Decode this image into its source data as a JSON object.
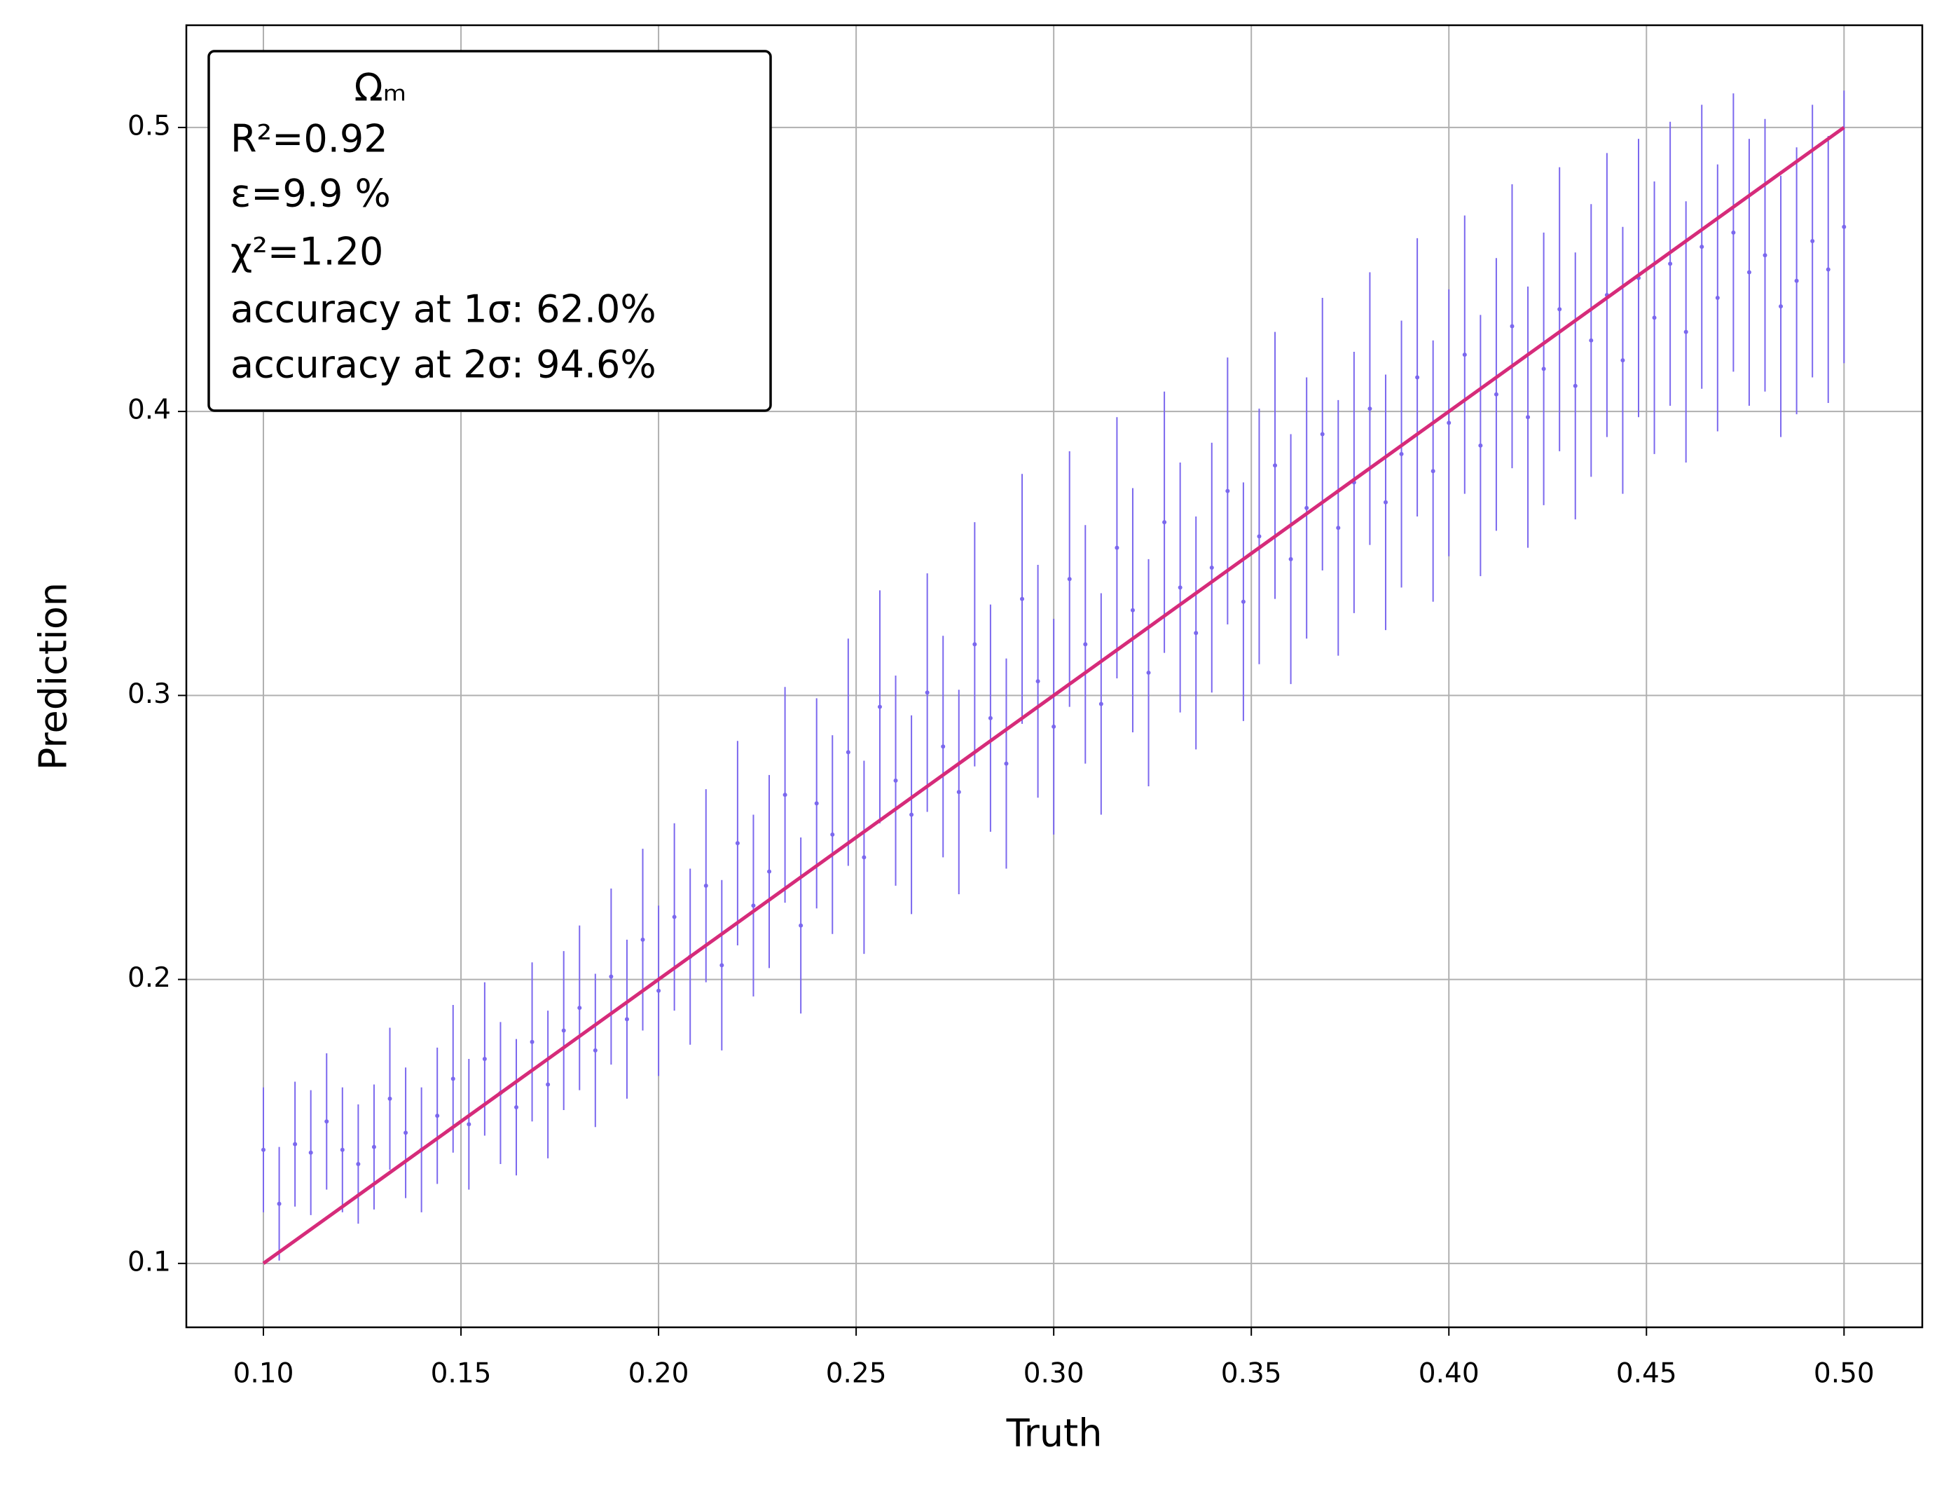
{
  "chart_data": {
    "type": "scatter",
    "x_label": "Truth",
    "y_label": "Prediction",
    "xlim": [
      0.0805,
      0.5198
    ],
    "ylim": [
      0.0775,
      0.536
    ],
    "xticks": [
      {
        "value": 0.1,
        "label": "0.10"
      },
      {
        "value": 0.15,
        "label": "0.15"
      },
      {
        "value": 0.2,
        "label": "0.20"
      },
      {
        "value": 0.25,
        "label": "0.25"
      },
      {
        "value": 0.3,
        "label": "0.30"
      },
      {
        "value": 0.35,
        "label": "0.35"
      },
      {
        "value": 0.4,
        "label": "0.40"
      },
      {
        "value": 0.45,
        "label": "0.45"
      },
      {
        "value": 0.5,
        "label": "0.50"
      }
    ],
    "yticks": [
      0.1,
      0.2,
      0.3,
      0.4,
      0.5
    ],
    "grid": true,
    "annotation": [
      "Ωₘ",
      "R²=0.92",
      "ε=9.9 %",
      "χ²=1.20",
      "accuracy at 1σ: 62.0%",
      "accuracy at 2σ: 94.6%"
    ],
    "points": {
      "color": "#7b68ee",
      "x": [
        0.1,
        0.104,
        0.108,
        0.112,
        0.116,
        0.12,
        0.124,
        0.128,
        0.132,
        0.136,
        0.14,
        0.144,
        0.148,
        0.152,
        0.156,
        0.16,
        0.164,
        0.168,
        0.172,
        0.176,
        0.18,
        0.184,
        0.188,
        0.192,
        0.196,
        0.2,
        0.204,
        0.208,
        0.212,
        0.216,
        0.22,
        0.224,
        0.228,
        0.232,
        0.236,
        0.24,
        0.244,
        0.248,
        0.252,
        0.256,
        0.26,
        0.264,
        0.268,
        0.272,
        0.276,
        0.28,
        0.284,
        0.288,
        0.292,
        0.296,
        0.3,
        0.304,
        0.308,
        0.312,
        0.316,
        0.32,
        0.324,
        0.328,
        0.332,
        0.336,
        0.34,
        0.344,
        0.348,
        0.352,
        0.356,
        0.36,
        0.364,
        0.368,
        0.372,
        0.376,
        0.38,
        0.384,
        0.388,
        0.392,
        0.396,
        0.4,
        0.404,
        0.408,
        0.412,
        0.416,
        0.42,
        0.424,
        0.428,
        0.432,
        0.436,
        0.44,
        0.444,
        0.448,
        0.452,
        0.456,
        0.46,
        0.464,
        0.468,
        0.472,
        0.476,
        0.48,
        0.484,
        0.488,
        0.492,
        0.496,
        0.5
      ],
      "values": [
        0.14,
        0.121,
        0.142,
        0.139,
        0.15,
        0.14,
        0.135,
        0.141,
        0.158,
        0.146,
        0.14,
        0.152,
        0.165,
        0.149,
        0.172,
        0.16,
        0.155,
        0.178,
        0.163,
        0.182,
        0.19,
        0.175,
        0.201,
        0.186,
        0.214,
        0.196,
        0.222,
        0.208,
        0.233,
        0.205,
        0.248,
        0.226,
        0.238,
        0.265,
        0.219,
        0.262,
        0.251,
        0.28,
        0.243,
        0.296,
        0.27,
        0.258,
        0.301,
        0.282,
        0.266,
        0.318,
        0.292,
        0.276,
        0.334,
        0.305,
        0.289,
        0.341,
        0.318,
        0.297,
        0.352,
        0.33,
        0.308,
        0.361,
        0.338,
        0.322,
        0.345,
        0.372,
        0.333,
        0.356,
        0.381,
        0.348,
        0.366,
        0.392,
        0.359,
        0.375,
        0.401,
        0.368,
        0.385,
        0.412,
        0.379,
        0.396,
        0.42,
        0.388,
        0.406,
        0.43,
        0.398,
        0.415,
        0.436,
        0.409,
        0.425,
        0.441,
        0.418,
        0.447,
        0.433,
        0.452,
        0.428,
        0.458,
        0.44,
        0.463,
        0.449,
        0.455,
        0.437,
        0.446,
        0.46,
        0.45,
        0.465
      ],
      "errors": [
        0.022,
        0.02,
        0.022,
        0.022,
        0.024,
        0.022,
        0.021,
        0.022,
        0.025,
        0.023,
        0.022,
        0.024,
        0.026,
        0.023,
        0.027,
        0.025,
        0.024,
        0.028,
        0.026,
        0.028,
        0.029,
        0.027,
        0.031,
        0.028,
        0.032,
        0.03,
        0.033,
        0.031,
        0.034,
        0.03,
        0.036,
        0.032,
        0.034,
        0.038,
        0.031,
        0.037,
        0.035,
        0.04,
        0.034,
        0.041,
        0.037,
        0.035,
        0.042,
        0.039,
        0.036,
        0.043,
        0.04,
        0.037,
        0.044,
        0.041,
        0.038,
        0.045,
        0.042,
        0.039,
        0.046,
        0.043,
        0.04,
        0.046,
        0.044,
        0.041,
        0.044,
        0.047,
        0.042,
        0.045,
        0.047,
        0.044,
        0.046,
        0.048,
        0.045,
        0.046,
        0.048,
        0.045,
        0.047,
        0.049,
        0.046,
        0.047,
        0.049,
        0.046,
        0.048,
        0.05,
        0.046,
        0.048,
        0.05,
        0.047,
        0.048,
        0.05,
        0.047,
        0.049,
        0.048,
        0.05,
        0.046,
        0.05,
        0.047,
        0.049,
        0.047,
        0.048,
        0.046,
        0.047,
        0.048,
        0.047,
        0.048
      ]
    },
    "line": {
      "color": "#d62b7a",
      "x": [
        0.1,
        0.5
      ],
      "values": [
        0.1,
        0.5
      ]
    }
  }
}
